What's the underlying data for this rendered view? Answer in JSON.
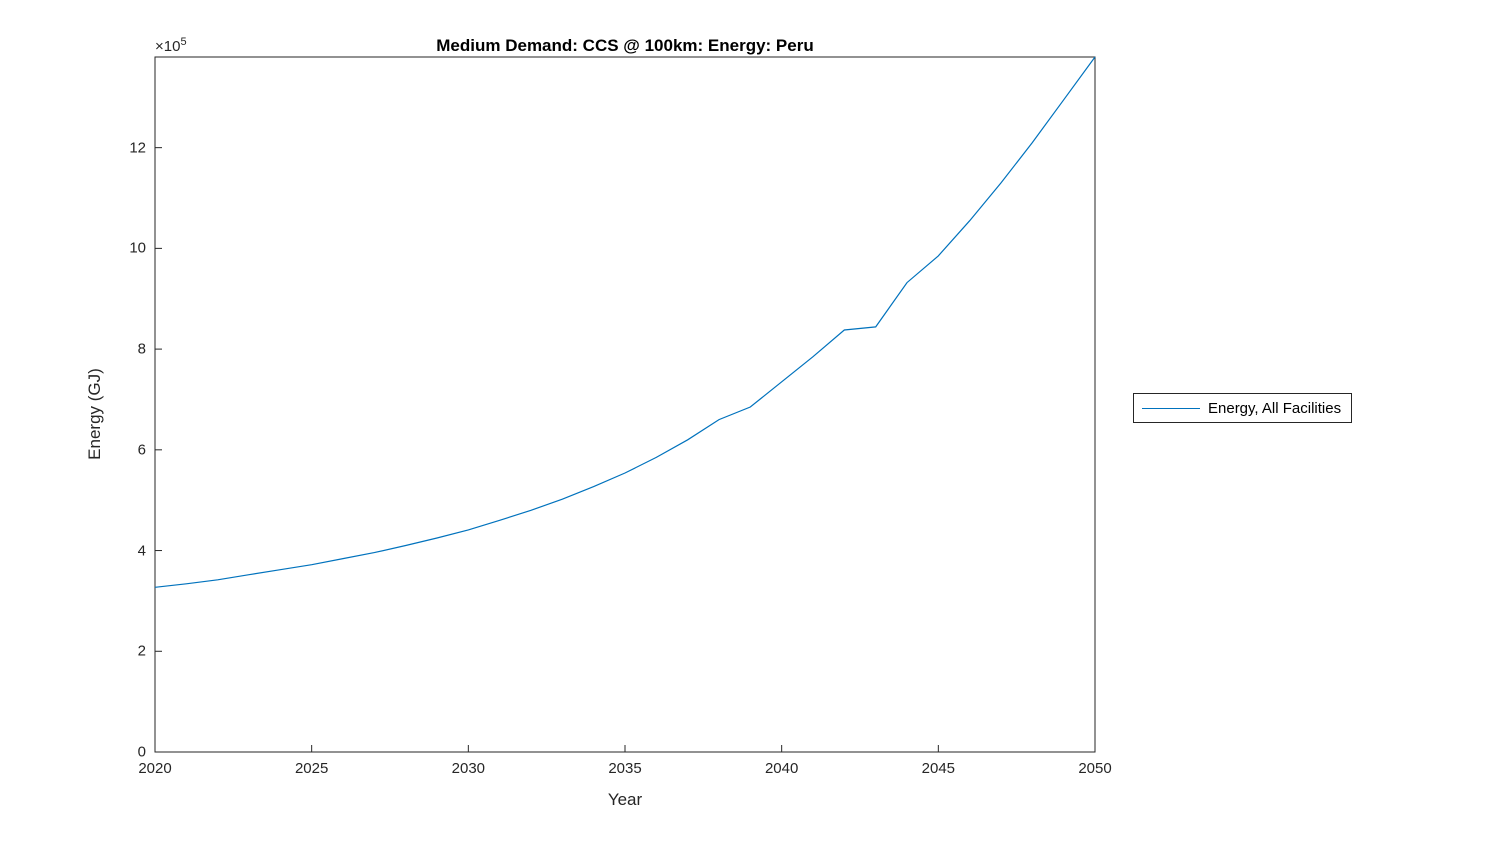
{
  "figure": {
    "title": "Medium Demand: CCS @ 100km: Energy: Peru",
    "exponent_prefix": "×10",
    "exponent_value": "5"
  },
  "axes": {
    "xlabel": "Year",
    "ylabel": "Energy (GJ)"
  },
  "legend": {
    "entries": [
      {
        "label": "Energy, All Facilities",
        "color": "#0072BD"
      }
    ]
  },
  "colors": {
    "line": "#0072BD",
    "axis": "#262626",
    "background": "#ffffff"
  },
  "chart_data": {
    "type": "line",
    "title": "Medium Demand: CCS @ 100km: Energy: Peru",
    "xlabel": "Year",
    "ylabel": "Energy (GJ)",
    "units_note": "y values in 10^5 GJ",
    "xlim": [
      2020,
      2050
    ],
    "ylim": [
      0,
      13.8
    ],
    "x_ticks": [
      2020,
      2025,
      2030,
      2035,
      2040,
      2045,
      2050
    ],
    "y_ticks": [
      0,
      2,
      4,
      6,
      8,
      10,
      12
    ],
    "grid": false,
    "legend_position": "right-outside",
    "series": [
      {
        "name": "Energy, All Facilities",
        "color": "#0072BD",
        "x": [
          2020,
          2021,
          2022,
          2023,
          2024,
          2025,
          2026,
          2027,
          2028,
          2029,
          2030,
          2031,
          2032,
          2033,
          2034,
          2035,
          2036,
          2037,
          2038,
          2039,
          2040,
          2041,
          2042,
          2043,
          2044,
          2045,
          2046,
          2047,
          2048,
          2049,
          2050
        ],
        "values": [
          3.27,
          3.34,
          3.42,
          3.52,
          3.62,
          3.72,
          3.84,
          3.96,
          4.1,
          4.25,
          4.41,
          4.6,
          4.8,
          5.02,
          5.27,
          5.54,
          5.85,
          6.2,
          6.6,
          6.85,
          7.35,
          7.85,
          8.38,
          8.44,
          9.32,
          9.85,
          10.55,
          11.3,
          12.1,
          12.95,
          13.8
        ]
      }
    ]
  }
}
